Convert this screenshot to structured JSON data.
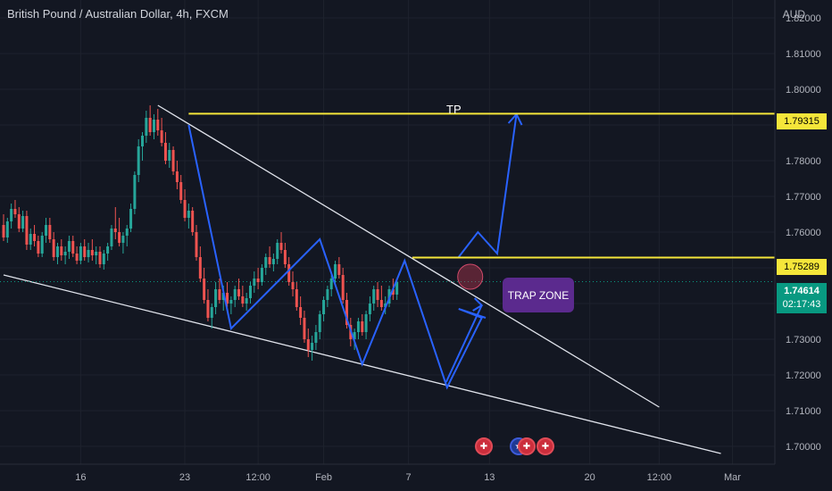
{
  "header": {
    "title": "British Pound / Australian Dollar, 4h, FXCM",
    "currency": "AUD"
  },
  "annotations": {
    "tp_label": "TP",
    "trap_zone": "TRAP ZONE"
  },
  "price_labels": {
    "tp_price": "1.79315",
    "resistance_price": "1.75289",
    "current_price": "1.74614",
    "countdown": "02:17:43"
  },
  "colors": {
    "background": "#131722",
    "up_candle": "#26a69a",
    "down_candle": "#ef5350",
    "yellow_level": "#f5e63a",
    "blue_path": "#2962ff",
    "trendline": "#e0e3eb",
    "trap_zone": "#5b2a8e"
  },
  "events": {
    "icons": [
      "uk-flag-icon",
      "au-flag-icon",
      "uk-flag-icon",
      "uk-flag-icon"
    ]
  },
  "chart_data": {
    "type": "candlestick",
    "title": "British Pound / Australian Dollar, 4h, FXCM",
    "ylabel": "AUD",
    "ylim": [
      1.6975,
      1.8225
    ],
    "y_ticks": [
      "1.82000",
      "1.81000",
      "1.80000",
      "1.79000",
      "1.78000",
      "1.77000",
      "1.76000",
      "1.75000",
      "1.74000",
      "1.73000",
      "1.72000",
      "1.71000",
      "1.70000"
    ],
    "x_ticks": [
      {
        "label": "16",
        "bar": 20
      },
      {
        "label": "23",
        "bar": 47
      },
      {
        "label": "12:00",
        "bar": 66
      },
      {
        "label": "Feb",
        "bar": 83
      },
      {
        "label": "7",
        "bar": 105
      },
      {
        "label": "13",
        "bar": 126
      },
      {
        "label": "20",
        "bar": 152
      },
      {
        "label": "12:00",
        "bar": 170
      },
      {
        "label": "Mar",
        "bar": 189
      }
    ],
    "levels": [
      {
        "name": "TP",
        "value": 1.79315
      },
      {
        "value": 1.75289
      }
    ],
    "current_price": 1.74614,
    "trendlines": [
      {
        "from": [
          40,
          1.7955
        ],
        "to": [
          170,
          1.711
        ]
      },
      {
        "from": [
          0,
          1.748
        ],
        "to": [
          186,
          1.698
        ]
      }
    ],
    "path": [
      [
        48,
        1.79
      ],
      [
        59,
        1.733
      ],
      [
        82,
        1.758
      ],
      [
        93,
        1.723
      ],
      [
        104,
        1.752
      ],
      [
        115,
        1.7165
      ],
      [
        124,
        1.736
      ],
      [
        118,
        1.7385
      ],
      [
        125,
        1.736
      ]
    ],
    "projection": [
      [
        118,
        1.753
      ],
      [
        123,
        1.76
      ],
      [
        128,
        1.754
      ],
      [
        133,
        1.793
      ]
    ],
    "candles": [
      [
        1.762,
        1.765,
        1.7575,
        1.7585
      ],
      [
        1.7585,
        1.764,
        1.757,
        1.763
      ],
      [
        1.763,
        1.768,
        1.761,
        1.7665
      ],
      [
        1.7665,
        1.769,
        1.764,
        1.765
      ],
      [
        1.765,
        1.767,
        1.76,
        1.761
      ],
      [
        1.761,
        1.766,
        1.76,
        1.7645
      ],
      [
        1.7645,
        1.766,
        1.755,
        1.7565
      ],
      [
        1.7565,
        1.761,
        1.755,
        1.7595
      ],
      [
        1.7595,
        1.762,
        1.756,
        1.7575
      ],
      [
        1.7575,
        1.759,
        1.753,
        1.754
      ],
      [
        1.754,
        1.76,
        1.753,
        1.759
      ],
      [
        1.759,
        1.764,
        1.757,
        1.762
      ],
      [
        1.762,
        1.764,
        1.757,
        1.758
      ],
      [
        1.758,
        1.76,
        1.752,
        1.753
      ],
      [
        1.753,
        1.757,
        1.751,
        1.756
      ],
      [
        1.756,
        1.758,
        1.752,
        1.7535
      ],
      [
        1.7535,
        1.756,
        1.751,
        1.7545
      ],
      [
        1.7545,
        1.759,
        1.7525,
        1.7575
      ],
      [
        1.7575,
        1.759,
        1.753,
        1.754
      ],
      [
        1.754,
        1.756,
        1.751,
        1.752
      ],
      [
        1.752,
        1.757,
        1.751,
        1.756
      ],
      [
        1.756,
        1.758,
        1.752,
        1.753
      ],
      [
        1.753,
        1.757,
        1.7515,
        1.755
      ],
      [
        1.755,
        1.758,
        1.752,
        1.7535
      ],
      [
        1.7535,
        1.756,
        1.751,
        1.7545
      ],
      [
        1.7545,
        1.756,
        1.75,
        1.751
      ],
      [
        1.751,
        1.755,
        1.7495,
        1.754
      ],
      [
        1.754,
        1.757,
        1.752,
        1.756
      ],
      [
        1.756,
        1.762,
        1.755,
        1.761
      ],
      [
        1.761,
        1.767,
        1.758,
        1.76
      ],
      [
        1.76,
        1.764,
        1.756,
        1.757
      ],
      [
        1.757,
        1.76,
        1.754,
        1.759
      ],
      [
        1.759,
        1.762,
        1.756,
        1.761
      ],
      [
        1.761,
        1.768,
        1.76,
        1.7665
      ],
      [
        1.7665,
        1.777,
        1.765,
        1.776
      ],
      [
        1.776,
        1.786,
        1.774,
        1.784
      ],
      [
        1.784,
        1.788,
        1.78,
        1.787
      ],
      [
        1.787,
        1.794,
        1.785,
        1.792
      ],
      [
        1.792,
        1.7955,
        1.787,
        1.788
      ],
      [
        1.788,
        1.793,
        1.786,
        1.7915
      ],
      [
        1.7915,
        1.7945,
        1.787,
        1.7885
      ],
      [
        1.7885,
        1.792,
        1.784,
        1.785
      ],
      [
        1.785,
        1.788,
        1.779,
        1.78
      ],
      [
        1.78,
        1.785,
        1.778,
        1.783
      ],
      [
        1.783,
        1.784,
        1.776,
        1.777
      ],
      [
        1.777,
        1.78,
        1.772,
        1.774
      ],
      [
        1.774,
        1.776,
        1.768,
        1.769
      ],
      [
        1.769,
        1.772,
        1.763,
        1.764
      ],
      [
        1.764,
        1.768,
        1.761,
        1.766
      ],
      [
        1.766,
        1.767,
        1.759,
        1.76
      ],
      [
        1.76,
        1.762,
        1.752,
        1.753
      ],
      [
        1.753,
        1.756,
        1.746,
        1.747
      ],
      [
        1.747,
        1.75,
        1.74,
        1.741
      ],
      [
        1.741,
        1.744,
        1.735,
        1.736
      ],
      [
        1.736,
        1.74,
        1.733,
        1.739
      ],
      [
        1.739,
        1.746,
        1.737,
        1.744
      ],
      [
        1.744,
        1.747,
        1.74,
        1.741
      ],
      [
        1.741,
        1.745,
        1.738,
        1.743
      ],
      [
        1.743,
        1.746,
        1.739,
        1.74
      ],
      [
        1.74,
        1.742,
        1.737,
        1.741
      ],
      [
        1.741,
        1.745,
        1.739,
        1.744
      ],
      [
        1.744,
        1.747,
        1.741,
        1.742
      ],
      [
        1.742,
        1.745,
        1.739,
        1.74
      ],
      [
        1.74,
        1.743,
        1.738,
        1.7415
      ],
      [
        1.7415,
        1.746,
        1.74,
        1.745
      ],
      [
        1.745,
        1.749,
        1.743,
        1.747
      ],
      [
        1.747,
        1.75,
        1.744,
        1.746
      ],
      [
        1.746,
        1.751,
        1.745,
        1.75
      ],
      [
        1.75,
        1.754,
        1.748,
        1.753
      ],
      [
        1.753,
        1.756,
        1.75,
        1.751
      ],
      [
        1.751,
        1.754,
        1.749,
        1.7525
      ],
      [
        1.7525,
        1.758,
        1.751,
        1.757
      ],
      [
        1.757,
        1.76,
        1.754,
        1.755
      ],
      [
        1.755,
        1.757,
        1.75,
        1.751
      ],
      [
        1.751,
        1.753,
        1.745,
        1.746
      ],
      [
        1.746,
        1.749,
        1.742,
        1.744
      ],
      [
        1.744,
        1.746,
        1.738,
        1.739
      ],
      [
        1.739,
        1.742,
        1.734,
        1.736
      ],
      [
        1.736,
        1.738,
        1.729,
        1.73
      ],
      [
        1.73,
        1.733,
        1.725,
        1.727
      ],
      [
        1.727,
        1.731,
        1.724,
        1.729
      ],
      [
        1.729,
        1.734,
        1.727,
        1.732
      ],
      [
        1.732,
        1.738,
        1.73,
        1.737
      ],
      [
        1.737,
        1.742,
        1.735,
        1.741
      ],
      [
        1.741,
        1.745,
        1.739,
        1.744
      ],
      [
        1.744,
        1.748,
        1.742,
        1.747
      ],
      [
        1.747,
        1.752,
        1.745,
        1.751
      ],
      [
        1.751,
        1.753,
        1.747,
        1.748
      ],
      [
        1.748,
        1.75,
        1.74,
        1.741
      ],
      [
        1.741,
        1.743,
        1.733,
        1.734
      ],
      [
        1.734,
        1.736,
        1.728,
        1.73
      ],
      [
        1.73,
        1.733,
        1.727,
        1.732
      ],
      [
        1.732,
        1.736,
        1.73,
        1.735
      ],
      [
        1.735,
        1.737,
        1.731,
        1.732
      ],
      [
        1.732,
        1.738,
        1.73,
        1.737
      ],
      [
        1.737,
        1.742,
        1.735,
        1.74
      ],
      [
        1.74,
        1.745,
        1.738,
        1.744
      ],
      [
        1.744,
        1.746,
        1.739,
        1.741
      ],
      [
        1.741,
        1.745,
        1.738,
        1.739
      ],
      [
        1.739,
        1.742,
        1.737,
        1.74
      ],
      [
        1.74,
        1.745,
        1.739,
        1.744
      ],
      [
        1.744,
        1.747,
        1.741,
        1.7425
      ],
      [
        1.7425,
        1.747,
        1.741,
        1.7461
      ]
    ]
  }
}
